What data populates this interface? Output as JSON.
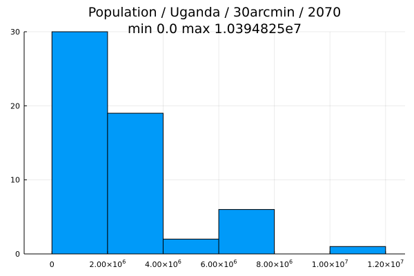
{
  "chart_data": {
    "type": "bar",
    "title": "Population / Uganda / 30arcmin / 2070",
    "subtitle": "min 0.0  max 1.0394825e7",
    "xlabel": "",
    "ylabel": "",
    "xlim": [
      -1000000,
      12700000
    ],
    "ylim": [
      0,
      30
    ],
    "grid": true,
    "bar_color": "#009af9",
    "bins": [
      {
        "x0": 0,
        "x1": 2000000,
        "count": 30
      },
      {
        "x0": 2000000,
        "x1": 4000000,
        "count": 19
      },
      {
        "x0": 4000000,
        "x1": 6000000,
        "count": 2
      },
      {
        "x0": 6000000,
        "x1": 8000000,
        "count": 6
      },
      {
        "x0": 8000000,
        "x1": 10000000,
        "count": 0
      },
      {
        "x0": 10000000,
        "x1": 12000000,
        "count": 1
      }
    ],
    "x_ticks": [
      {
        "value": 0,
        "mantissa": "0",
        "exp": ""
      },
      {
        "value": 2000000,
        "mantissa": "2.00×10",
        "exp": "6"
      },
      {
        "value": 4000000,
        "mantissa": "4.00×10",
        "exp": "6"
      },
      {
        "value": 6000000,
        "mantissa": "6.00×10",
        "exp": "6"
      },
      {
        "value": 8000000,
        "mantissa": "8.00×10",
        "exp": "6"
      },
      {
        "value": 10000000,
        "mantissa": "1.00×10",
        "exp": "7"
      },
      {
        "value": 12000000,
        "mantissa": "1.20×10",
        "exp": "7"
      }
    ],
    "y_ticks": [
      {
        "value": 0,
        "label": "0"
      },
      {
        "value": 10,
        "label": "10"
      },
      {
        "value": 20,
        "label": "20"
      },
      {
        "value": 30,
        "label": "30"
      }
    ]
  }
}
